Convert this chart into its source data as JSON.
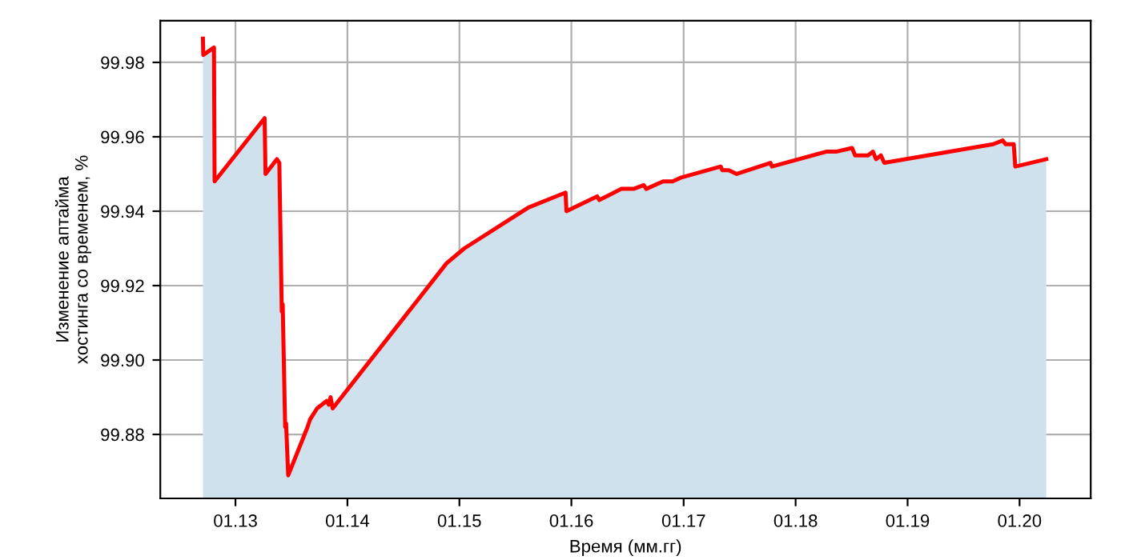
{
  "chart_data": {
    "type": "area",
    "xlabel": "Время (мм.гг)",
    "ylabel": "Изменение аптайма\nхостинга со временем, %",
    "x": [
      "2012-09-17",
      "2012-09-18",
      "2012-10-23",
      "2012-10-25",
      "2013-04-06",
      "2013-04-09",
      "2013-05-16",
      "2013-05-24",
      "2013-06-01",
      "2013-06-04",
      "2013-06-12",
      "2013-06-15",
      "2013-06-22",
      "2013-08-24",
      "2013-09-01",
      "2013-09-24",
      "2013-10-25",
      "2013-11-01",
      "2013-11-07",
      "2013-11-14",
      "2014-11-20",
      "2015-01-17",
      "2015-08-14",
      "2015-12-13",
      "2015-12-16",
      "2016-03-25",
      "2016-04-01",
      "2016-06-12",
      "2016-07-22",
      "2016-08-24",
      "2016-09-01",
      "2016-10-26",
      "2016-11-26",
      "2016-12-22",
      "2017-05-02",
      "2017-05-07",
      "2017-05-28",
      "2017-06-23",
      "2017-10-11",
      "2017-10-16",
      "2018-04-11",
      "2018-05-13",
      "2018-07-04",
      "2018-07-14",
      "2018-08-25",
      "2018-09-10",
      "2018-09-20",
      "2018-10-06",
      "2018-10-17",
      "2019-10-07",
      "2019-11-07",
      "2019-11-17",
      "2019-12-13",
      "2019-12-18",
      "2020-03-28"
    ],
    "series": [
      {
        "color": "#ff0000",
        "values": [
          99.9864,
          99.982,
          99.984,
          99.948,
          99.965,
          99.95,
          99.954,
          99.953,
          99.913,
          99.915,
          99.882,
          99.883,
          99.869,
          99.882,
          99.884,
          99.887,
          99.889,
          99.888,
          99.89,
          99.887,
          99.926,
          99.93,
          99.941,
          99.945,
          99.94,
          99.944,
          99.943,
          99.946,
          99.946,
          99.947,
          99.946,
          99.948,
          99.948,
          99.949,
          99.952,
          99.951,
          99.951,
          99.95,
          99.953,
          99.952,
          99.956,
          99.956,
          99.957,
          99.955,
          99.955,
          99.956,
          99.954,
          99.955,
          99.953,
          99.958,
          99.959,
          99.958,
          99.958,
          99.952,
          99.954
        ]
      }
    ],
    "xlim": [
      "2012-05-01",
      "2020-08-20"
    ],
    "xticks": [
      {
        "value": "2013-01",
        "label": "01.13"
      },
      {
        "value": "2014-01",
        "label": "01.14"
      },
      {
        "value": "2015-01",
        "label": "01.15"
      },
      {
        "value": "2016-01",
        "label": "01.16"
      },
      {
        "value": "2017-01",
        "label": "01.17"
      },
      {
        "value": "2018-01",
        "label": "01.18"
      },
      {
        "value": "2019-01",
        "label": "01.19"
      },
      {
        "value": "2020-01",
        "label": "01.20"
      }
    ],
    "ylim": [
      99.8628,
      99.9912
    ],
    "yticks": [
      {
        "value": 99.88,
        "label": "99.88"
      },
      {
        "value": 99.9,
        "label": "99.90"
      },
      {
        "value": 99.92,
        "label": "99.92"
      },
      {
        "value": 99.94,
        "label": "99.94"
      },
      {
        "value": 99.96,
        "label": "99.96"
      },
      {
        "value": 99.98,
        "label": "99.98"
      }
    ],
    "grid": true
  }
}
